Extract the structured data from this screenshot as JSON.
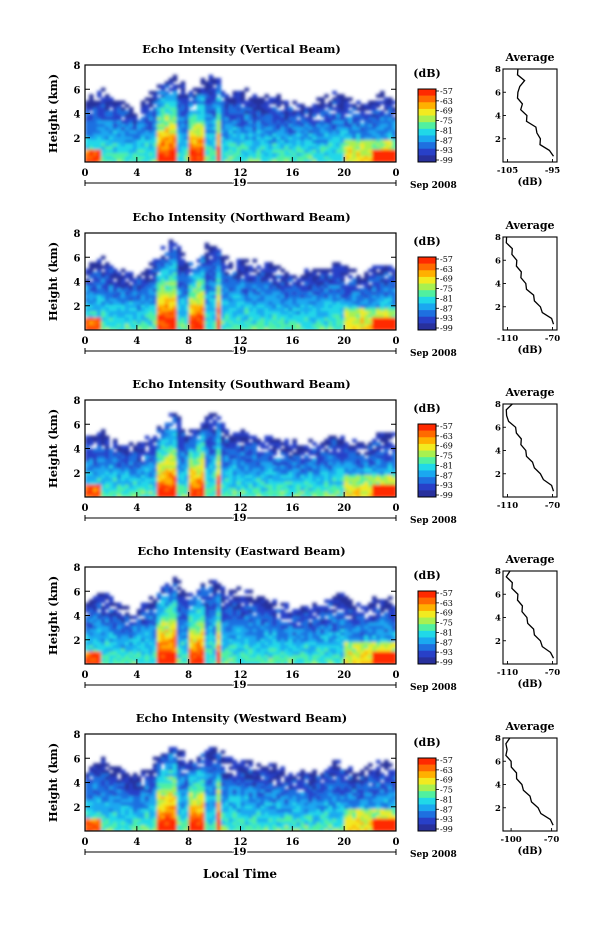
{
  "figure": {
    "xlabel_bottom": "Local Time",
    "date_label": "Sep 2008",
    "day_label": "19",
    "avg_title": "Average",
    "unit_label": "(dB)",
    "ylabel": "Height (km)"
  },
  "colorbar": {
    "ticks": [
      "-57",
      "-63",
      "-69",
      "-75",
      "-81",
      "-87",
      "-93",
      "-99"
    ],
    "colors": [
      "#ff2a00",
      "#ff6a00",
      "#ffb000",
      "#f2ea20",
      "#a8f050",
      "#50f0a0",
      "#20d8e8",
      "#1aa8f0",
      "#1e70e0",
      "#2840c8",
      "#28309c"
    ]
  },
  "chart_data": [
    {
      "type": "heatmap",
      "title": "Echo Intensity (Vertical Beam)",
      "xlabel": "Local Time",
      "ylabel": "Height (km)",
      "xlim": [
        0,
        24
      ],
      "ylim": [
        0,
        8
      ],
      "x_ticks": [
        "0",
        "4",
        "8",
        "12",
        "16",
        "20",
        "0"
      ],
      "y_ticks": [
        "2",
        "4",
        "6",
        "8"
      ],
      "clim": [
        -99,
        -57
      ],
      "zlabel": "(dB)",
      "profile": {
        "title": "Average",
        "xlabel": "(dB)",
        "x_ticks": [
          "-105",
          "-95"
        ],
        "xlim": [
          -106,
          -94
        ],
        "height": [
          0.5,
          1.0,
          1.5,
          2.0,
          2.5,
          3.0,
          3.5,
          4.0,
          4.5,
          5.0,
          5.5,
          6.0,
          6.5,
          7.0,
          7.5,
          8.0
        ],
        "value": [
          -94.5,
          -96.0,
          -97.5,
          -98.0,
          -98.2,
          -99.0,
          -100.5,
          -101.0,
          -101.8,
          -102.0,
          -102.5,
          -103.0,
          -102.0,
          -101.5,
          -102.5,
          -103.0
        ]
      }
    },
    {
      "type": "heatmap",
      "title": "Echo Intensity (Northward Beam)",
      "xlabel": "Local Time",
      "ylabel": "Height (km)",
      "xlim": [
        0,
        24
      ],
      "ylim": [
        0,
        8
      ],
      "x_ticks": [
        "0",
        "4",
        "8",
        "12",
        "16",
        "20",
        "0"
      ],
      "y_ticks": [
        "2",
        "4",
        "6",
        "8"
      ],
      "clim": [
        -99,
        -57
      ],
      "zlabel": "(dB)",
      "profile": {
        "title": "Average",
        "xlabel": "(dB)",
        "x_ticks": [
          "-110",
          "-70"
        ],
        "xlim": [
          -114,
          -66
        ],
        "height": [
          0.5,
          1.0,
          1.5,
          2.0,
          2.5,
          3.0,
          3.5,
          4.0,
          4.5,
          5.0,
          5.5,
          6.0,
          6.5,
          7.0,
          7.5,
          8.0
        ],
        "value": [
          -68,
          -72,
          -78,
          -82,
          -85,
          -88,
          -92,
          -95,
          -97,
          -99,
          -101,
          -103,
          -105,
          -107,
          -110,
          -112
        ]
      }
    },
    {
      "type": "heatmap",
      "title": "Echo Intensity (Southward Beam)",
      "xlabel": "Local Time",
      "ylabel": "Height (km)",
      "xlim": [
        0,
        24
      ],
      "ylim": [
        0,
        8
      ],
      "x_ticks": [
        "0",
        "4",
        "8",
        "12",
        "16",
        "20",
        "0"
      ],
      "y_ticks": [
        "2",
        "4",
        "6",
        "8"
      ],
      "clim": [
        -99,
        -57
      ],
      "zlabel": "(dB)",
      "profile": {
        "title": "Average",
        "xlabel": "",
        "x_ticks": [
          "-110",
          "-70"
        ],
        "xlim": [
          -114,
          -66
        ],
        "height": [
          0.5,
          1.0,
          1.5,
          2.0,
          2.5,
          3.0,
          3.5,
          4.0,
          4.5,
          5.0,
          5.5,
          6.0,
          6.5,
          7.0,
          7.5,
          8.0
        ],
        "value": [
          -68,
          -72,
          -77,
          -82,
          -85,
          -89,
          -92,
          -95,
          -97,
          -99,
          -101,
          -104,
          -108,
          -112,
          -110,
          -107
        ]
      }
    },
    {
      "type": "heatmap",
      "title": "Echo Intensity (Eastward Beam)",
      "xlabel": "Local Time",
      "ylabel": "Height (km)",
      "xlim": [
        0,
        24
      ],
      "ylim": [
        0,
        8
      ],
      "x_ticks": [
        "0",
        "4",
        "8",
        "12",
        "16",
        "20",
        "0"
      ],
      "y_ticks": [
        "2",
        "4",
        "6",
        "8"
      ],
      "clim": [
        -99,
        -57
      ],
      "zlabel": "(dB)",
      "profile": {
        "title": "Average",
        "xlabel": "(dB)",
        "x_ticks": [
          "-110",
          "-70"
        ],
        "xlim": [
          -114,
          -66
        ],
        "height": [
          0.5,
          1.0,
          1.5,
          2.0,
          2.5,
          3.0,
          3.5,
          4.0,
          4.5,
          5.0,
          5.5,
          6.0,
          6.5,
          7.0,
          7.5,
          8.0
        ],
        "value": [
          -68,
          -73,
          -78,
          -82,
          -85,
          -88,
          -91,
          -94,
          -96,
          -98,
          -100,
          -102,
          -105,
          -107,
          -110,
          -109
        ]
      }
    },
    {
      "type": "heatmap",
      "title": "Echo Intensity (Westward Beam)",
      "xlabel": "Local Time",
      "ylabel": "Height (km)",
      "xlim": [
        0,
        24
      ],
      "ylim": [
        0,
        8
      ],
      "x_ticks": [
        "0",
        "4",
        "8",
        "12",
        "16",
        "20",
        "0"
      ],
      "y_ticks": [
        "2",
        "4",
        "6",
        "8"
      ],
      "clim": [
        -99,
        -57
      ],
      "zlabel": "(dB)",
      "profile": {
        "title": "Average",
        "xlabel": "(dB)",
        "x_ticks": [
          "-100",
          "-70"
        ],
        "xlim": [
          -106,
          -66
        ],
        "height": [
          0.5,
          1.0,
          1.5,
          2.0,
          2.5,
          3.0,
          3.5,
          4.0,
          4.5,
          5.0,
          5.5,
          6.0,
          6.5,
          7.0,
          7.5,
          8.0
        ],
        "value": [
          -68,
          -72,
          -77,
          -81,
          -84,
          -87,
          -90,
          -93,
          -95,
          -97,
          -99,
          -101,
          -103,
          -104,
          -103,
          -102
        ]
      }
    }
  ]
}
